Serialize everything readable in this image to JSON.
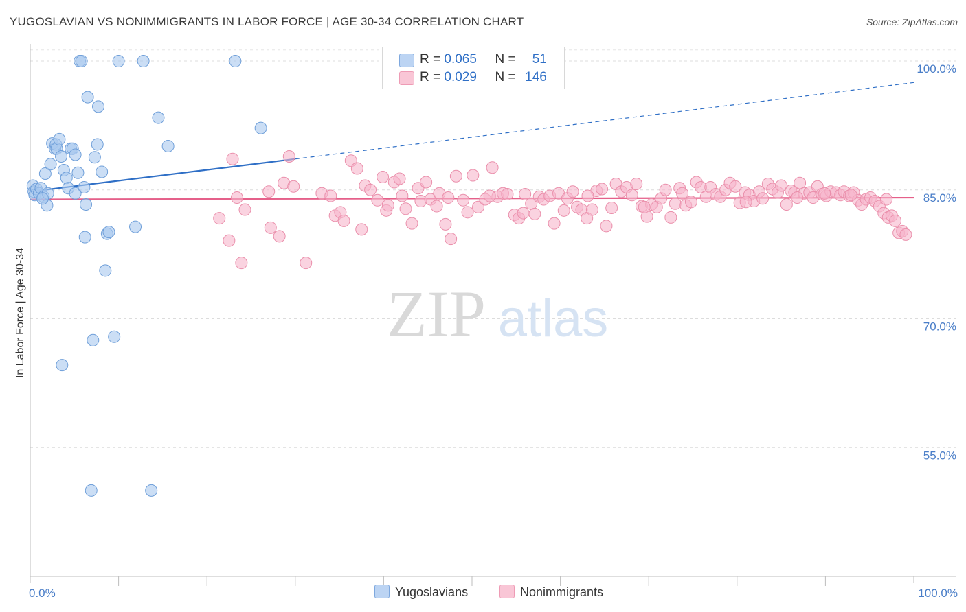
{
  "title": "YUGOSLAVIAN VS NONIMMIGRANTS IN LABOR FORCE | AGE 30-34 CORRELATION CHART",
  "source": "Source: ZipAtlas.com",
  "watermark": {
    "zip": "ZIP",
    "atlas": "atlas"
  },
  "legend": {
    "rows": [
      {
        "r_label": "R = ",
        "r_value": "0.065",
        "n_label": "N = ",
        "n_value": "51",
        "color": "#a9c8ef"
      },
      {
        "r_label": "R = ",
        "r_value": "0.029",
        "n_label": "N = ",
        "n_value": "146",
        "color": "#f7b6cb"
      }
    ]
  },
  "bottom_legend": {
    "series1": "Yugoslavians",
    "series2": "Nonimmigrants"
  },
  "chart_data": {
    "type": "scatter",
    "title": "YUGOSLAVIAN VS NONIMMIGRANTS IN LABOR FORCE | AGE 30-34 CORRELATION CHART",
    "xlabel": "",
    "ylabel": "In Labor Force | Age 30-34",
    "xlim": [
      0,
      100
    ],
    "ylim": [
      40,
      102
    ],
    "x_tick_labels": [
      {
        "x": 0,
        "label": "0.0%"
      },
      {
        "x": 100,
        "label": "100.0%"
      }
    ],
    "y_ticks": [
      {
        "y": 100,
        "label": "100.0%"
      },
      {
        "y": 85,
        "label": "85.0%"
      },
      {
        "y": 70,
        "label": "70.0%"
      },
      {
        "y": 55,
        "label": "55.0%"
      }
    ],
    "series": [
      {
        "name": "Yugoslavians",
        "color": "#a9c8ef",
        "stroke": "#6f9fd9",
        "line_color": "#2f6fc6",
        "trend": {
          "x0": 0,
          "y0": 84.8,
          "x1": 30,
          "y1": 88.6,
          "dash_to_x": 100,
          "dash_to_y": 97.5
        },
        "points": [
          [
            0.3,
            85.5
          ],
          [
            0.4,
            84.8
          ],
          [
            0.5,
            84.4
          ],
          [
            0.7,
            85.1
          ],
          [
            1.0,
            84.6
          ],
          [
            1.2,
            85.2
          ],
          [
            1.5,
            84.2
          ],
          [
            1.7,
            86.9
          ],
          [
            1.9,
            83.2
          ],
          [
            2.0,
            84.6
          ],
          [
            2.3,
            88.0
          ],
          [
            2.5,
            90.4
          ],
          [
            2.8,
            89.8
          ],
          [
            2.9,
            90.3
          ],
          [
            3.0,
            89.8
          ],
          [
            3.3,
            90.9
          ],
          [
            3.5,
            88.9
          ],
          [
            3.8,
            87.3
          ],
          [
            4.1,
            86.4
          ],
          [
            4.3,
            85.2
          ],
          [
            4.6,
            89.8
          ],
          [
            4.8,
            89.8
          ],
          [
            5.1,
            89.1
          ],
          [
            5.1,
            84.6
          ],
          [
            5.4,
            87.0
          ],
          [
            5.6,
            100.0
          ],
          [
            5.8,
            100.0
          ],
          [
            6.1,
            85.3
          ],
          [
            6.2,
            79.5
          ],
          [
            6.3,
            83.3
          ],
          [
            6.5,
            95.8
          ],
          [
            6.9,
            50.0
          ],
          [
            7.1,
            67.5
          ],
          [
            7.3,
            88.8
          ],
          [
            7.6,
            90.3
          ],
          [
            7.7,
            94.7
          ],
          [
            8.1,
            87.1
          ],
          [
            8.5,
            75.6
          ],
          [
            8.7,
            79.9
          ],
          [
            8.9,
            80.1
          ],
          [
            9.5,
            67.9
          ],
          [
            10.0,
            100.0
          ],
          [
            11.9,
            80.7
          ],
          [
            12.8,
            100.0
          ],
          [
            13.7,
            50.0
          ],
          [
            14.5,
            93.4
          ],
          [
            15.6,
            90.1
          ],
          [
            23.2,
            100.0
          ],
          [
            26.1,
            92.2
          ],
          [
            1.4,
            84.0
          ],
          [
            3.6,
            64.6
          ]
        ]
      },
      {
        "name": "Nonimmigrants",
        "color": "#f7b6cb",
        "stroke": "#ea8fab",
        "line_color": "#e5608a",
        "trend": {
          "x0": 0,
          "y0": 83.9,
          "x1": 100,
          "y1": 84.1
        },
        "points": [
          [
            21.4,
            81.7
          ],
          [
            22.5,
            79.1
          ],
          [
            22.9,
            88.6
          ],
          [
            23.4,
            84.1
          ],
          [
            23.9,
            76.5
          ],
          [
            24.3,
            82.7
          ],
          [
            27.2,
            80.6
          ],
          [
            27.0,
            84.8
          ],
          [
            28.2,
            79.6
          ],
          [
            28.7,
            85.8
          ],
          [
            29.3,
            88.9
          ],
          [
            31.2,
            76.5
          ],
          [
            33.0,
            84.6
          ],
          [
            34.0,
            84.3
          ],
          [
            34.5,
            82.0
          ],
          [
            35.1,
            82.4
          ],
          [
            35.5,
            81.4
          ],
          [
            36.3,
            88.4
          ],
          [
            37.0,
            87.5
          ],
          [
            37.5,
            80.4
          ],
          [
            37.9,
            85.5
          ],
          [
            38.5,
            85.0
          ],
          [
            39.3,
            83.8
          ],
          [
            39.9,
            86.5
          ],
          [
            40.3,
            82.6
          ],
          [
            40.5,
            83.2
          ],
          [
            41.2,
            85.9
          ],
          [
            41.8,
            86.3
          ],
          [
            42.1,
            84.3
          ],
          [
            43.2,
            81.1
          ],
          [
            43.9,
            85.2
          ],
          [
            44.2,
            83.7
          ],
          [
            44.8,
            85.9
          ],
          [
            45.3,
            83.9
          ],
          [
            46.0,
            83.1
          ],
          [
            46.3,
            84.6
          ],
          [
            47.0,
            81.0
          ],
          [
            47.6,
            79.3
          ],
          [
            48.2,
            86.6
          ],
          [
            49.0,
            83.8
          ],
          [
            49.5,
            82.4
          ],
          [
            50.1,
            86.7
          ],
          [
            50.7,
            83.0
          ],
          [
            51.5,
            83.9
          ],
          [
            52.3,
            87.6
          ],
          [
            52.9,
            84.2
          ],
          [
            53.5,
            84.6
          ],
          [
            54.0,
            84.5
          ],
          [
            54.8,
            82.1
          ],
          [
            55.3,
            81.7
          ],
          [
            56.0,
            84.5
          ],
          [
            56.7,
            83.4
          ],
          [
            57.1,
            82.2
          ],
          [
            57.6,
            84.2
          ],
          [
            58.1,
            83.9
          ],
          [
            58.8,
            84.3
          ],
          [
            59.3,
            81.1
          ],
          [
            59.8,
            84.6
          ],
          [
            60.4,
            82.6
          ],
          [
            60.8,
            84.0
          ],
          [
            61.4,
            84.8
          ],
          [
            61.9,
            83.0
          ],
          [
            62.4,
            82.7
          ],
          [
            63.0,
            81.7
          ],
          [
            63.6,
            82.7
          ],
          [
            64.1,
            84.9
          ],
          [
            64.7,
            85.1
          ],
          [
            65.2,
            80.8
          ],
          [
            65.8,
            82.9
          ],
          [
            66.3,
            85.7
          ],
          [
            66.9,
            84.8
          ],
          [
            67.5,
            85.3
          ],
          [
            68.1,
            84.4
          ],
          [
            68.6,
            85.7
          ],
          [
            69.2,
            83.1
          ],
          [
            69.8,
            81.9
          ],
          [
            70.3,
            83.3
          ],
          [
            70.9,
            83.0
          ],
          [
            71.4,
            84.0
          ],
          [
            71.9,
            85.0
          ],
          [
            72.5,
            81.8
          ],
          [
            73.0,
            83.4
          ],
          [
            73.5,
            85.2
          ],
          [
            74.2,
            83.2
          ],
          [
            74.8,
            83.6
          ],
          [
            75.4,
            85.9
          ],
          [
            75.9,
            85.3
          ],
          [
            76.5,
            84.2
          ],
          [
            77.0,
            85.3
          ],
          [
            77.6,
            84.5
          ],
          [
            78.1,
            84.2
          ],
          [
            78.7,
            85.0
          ],
          [
            79.2,
            85.8
          ],
          [
            79.8,
            85.4
          ],
          [
            80.3,
            83.5
          ],
          [
            80.9,
            84.7
          ],
          [
            81.4,
            84.4
          ],
          [
            81.9,
            83.7
          ],
          [
            82.5,
            84.8
          ],
          [
            82.9,
            84.0
          ],
          [
            83.5,
            85.7
          ],
          [
            84.0,
            85.1
          ],
          [
            84.6,
            84.7
          ],
          [
            85.0,
            85.5
          ],
          [
            85.6,
            83.3
          ],
          [
            86.1,
            84.9
          ],
          [
            86.5,
            84.7
          ],
          [
            87.1,
            85.8
          ],
          [
            87.6,
            84.6
          ],
          [
            88.2,
            84.7
          ],
          [
            88.6,
            84.1
          ],
          [
            89.1,
            85.4
          ],
          [
            89.6,
            84.5
          ],
          [
            90.1,
            84.3
          ],
          [
            90.6,
            84.8
          ],
          [
            91.2,
            84.7
          ],
          [
            91.7,
            84.4
          ],
          [
            92.1,
            84.8
          ],
          [
            92.7,
            84.3
          ],
          [
            93.2,
            84.7
          ],
          [
            93.7,
            83.8
          ],
          [
            94.1,
            83.3
          ],
          [
            94.6,
            83.9
          ],
          [
            95.1,
            84.1
          ],
          [
            95.6,
            83.7
          ],
          [
            96.1,
            83.1
          ],
          [
            96.6,
            82.3
          ],
          [
            97.1,
            81.8
          ],
          [
            97.5,
            82.0
          ],
          [
            97.9,
            81.4
          ],
          [
            98.3,
            80.0
          ],
          [
            98.7,
            80.2
          ],
          [
            99.1,
            79.8
          ],
          [
            42.5,
            82.8
          ],
          [
            52.0,
            84.3
          ],
          [
            63.1,
            84.3
          ],
          [
            69.5,
            83.0
          ],
          [
            73.8,
            84.6
          ],
          [
            81.0,
            83.6
          ],
          [
            86.8,
            84.1
          ],
          [
            89.9,
            84.6
          ],
          [
            92.9,
            84.4
          ],
          [
            96.9,
            83.9
          ],
          [
            55.8,
            82.3
          ],
          [
            47.3,
            84.1
          ],
          [
            29.8,
            85.4
          ]
        ]
      }
    ]
  }
}
